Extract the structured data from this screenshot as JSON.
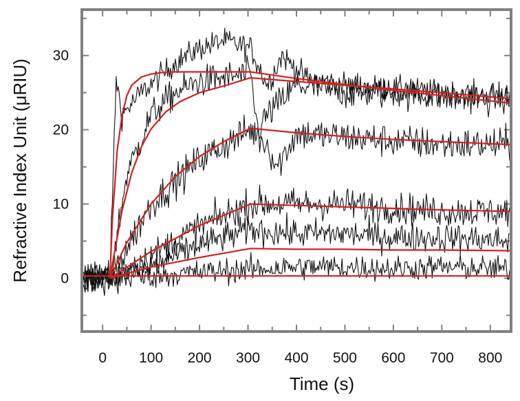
{
  "chart_data": {
    "type": "line",
    "title": "",
    "xlabel": "Time (s)",
    "ylabel": "Refractive Index Unit (μRIU)",
    "xlim": [
      -40,
      840
    ],
    "ylim": [
      -7,
      36
    ],
    "x_ticks": [
      0,
      100,
      200,
      300,
      400,
      500,
      600,
      700,
      800
    ],
    "y_ticks": [
      0,
      10,
      20,
      30
    ],
    "x_minor_ticks": [
      -50,
      50,
      150,
      250,
      350,
      450,
      550,
      650,
      750
    ],
    "y_minor_ticks": [
      -5,
      5,
      15,
      25,
      35
    ],
    "grid": false,
    "legend": "none",
    "colors": {
      "raw": "#111111",
      "fit": "#d42020",
      "frame": "#808080"
    },
    "injection_start": 15,
    "dissociation_start": 305,
    "series": [
      {
        "kind": "raw",
        "noise": 1.2,
        "x": [
          -40,
          0,
          15,
          28,
          40,
          80,
          150,
          200,
          250,
          305,
          340,
          370,
          420,
          500,
          600,
          700,
          840
        ],
        "values": [
          0,
          0,
          0,
          27,
          22,
          25,
          29,
          31,
          32,
          31,
          26,
          30,
          27,
          26,
          25.5,
          25,
          24.5
        ]
      },
      {
        "kind": "raw",
        "noise": 1.5,
        "x": [
          -40,
          0,
          15,
          50,
          100,
          150,
          200,
          250,
          305,
          320,
          340,
          400,
          500,
          600,
          700,
          840
        ],
        "values": [
          0,
          0,
          0,
          14,
          22,
          25,
          26.5,
          27,
          27.5,
          20,
          22,
          26,
          25,
          25,
          24.5,
          24
        ]
      },
      {
        "kind": "raw",
        "noise": 1.6,
        "x": [
          -40,
          0,
          15,
          100,
          200,
          305,
          340,
          360,
          400,
          500,
          600,
          700,
          840
        ],
        "values": [
          0,
          0,
          0,
          10,
          16,
          20,
          18,
          15,
          19.5,
          19,
          18.5,
          18,
          18
        ]
      },
      {
        "kind": "raw",
        "noise": 1.5,
        "x": [
          -40,
          0,
          15,
          100,
          200,
          305,
          400,
          500,
          600,
          700,
          840
        ],
        "values": [
          0,
          0,
          0,
          3,
          7,
          10,
          10,
          10,
          9.5,
          9,
          9
        ]
      },
      {
        "kind": "raw",
        "noise": 1.4,
        "x": [
          -40,
          0,
          15,
          100,
          200,
          305,
          400,
          500,
          600,
          700,
          840
        ],
        "values": [
          0,
          0,
          0,
          1.5,
          4.5,
          6.5,
          6,
          6,
          5.5,
          5.5,
          5
        ]
      },
      {
        "kind": "raw",
        "noise": 1.2,
        "x": [
          -40,
          0,
          15,
          100,
          200,
          305,
          400,
          500,
          600,
          700,
          840
        ],
        "values": [
          0,
          0,
          0,
          0.3,
          0.8,
          1.2,
          1.5,
          1.5,
          1.3,
          1.5,
          1.2
        ]
      },
      {
        "kind": "fit",
        "x": [
          15,
          20,
          30,
          40,
          50,
          60,
          80,
          100,
          120,
          150,
          200,
          250,
          305,
          400,
          500,
          600,
          700,
          840
        ],
        "values": [
          0,
          7.8,
          17.1,
          21.9,
          24.6,
          26,
          27.1,
          27.5,
          27.7,
          27.8,
          27.8,
          27.8,
          27.8,
          26.9,
          26.1,
          25.3,
          24.6,
          23.6
        ]
      },
      {
        "kind": "fit",
        "x": [
          15,
          40,
          60,
          80,
          100,
          130,
          160,
          200,
          250,
          305,
          400,
          500,
          600,
          700,
          840
        ],
        "values": [
          0,
          9.1,
          14.2,
          17.7,
          20.1,
          22.4,
          23.8,
          25,
          25.9,
          27,
          26.5,
          26,
          25.5,
          25,
          24.2
        ]
      },
      {
        "kind": "fit",
        "x": [
          15,
          50,
          100,
          150,
          200,
          250,
          305,
          400,
          500,
          600,
          700,
          840
        ],
        "values": [
          0,
          4.8,
          10,
          13.7,
          16.4,
          18.4,
          20.2,
          19.6,
          19.1,
          18.7,
          18.4,
          18
        ]
      },
      {
        "kind": "fit",
        "x": [
          15,
          100,
          200,
          305,
          400,
          500,
          600,
          700,
          840
        ],
        "values": [
          0,
          3.6,
          7.1,
          10,
          9.8,
          9.6,
          9.4,
          9.2,
          9
        ]
      },
      {
        "kind": "fit",
        "x": [
          15,
          100,
          200,
          305,
          400,
          500,
          600,
          700,
          840
        ],
        "values": [
          0,
          1.5,
          2.8,
          4,
          3.9,
          3.9,
          3.8,
          3.8,
          3.7
        ]
      },
      {
        "kind": "fit",
        "x": [
          -40,
          0,
          15,
          305,
          840
        ],
        "values": [
          0.3,
          0.3,
          0.3,
          0.3,
          0.3
        ]
      }
    ]
  }
}
